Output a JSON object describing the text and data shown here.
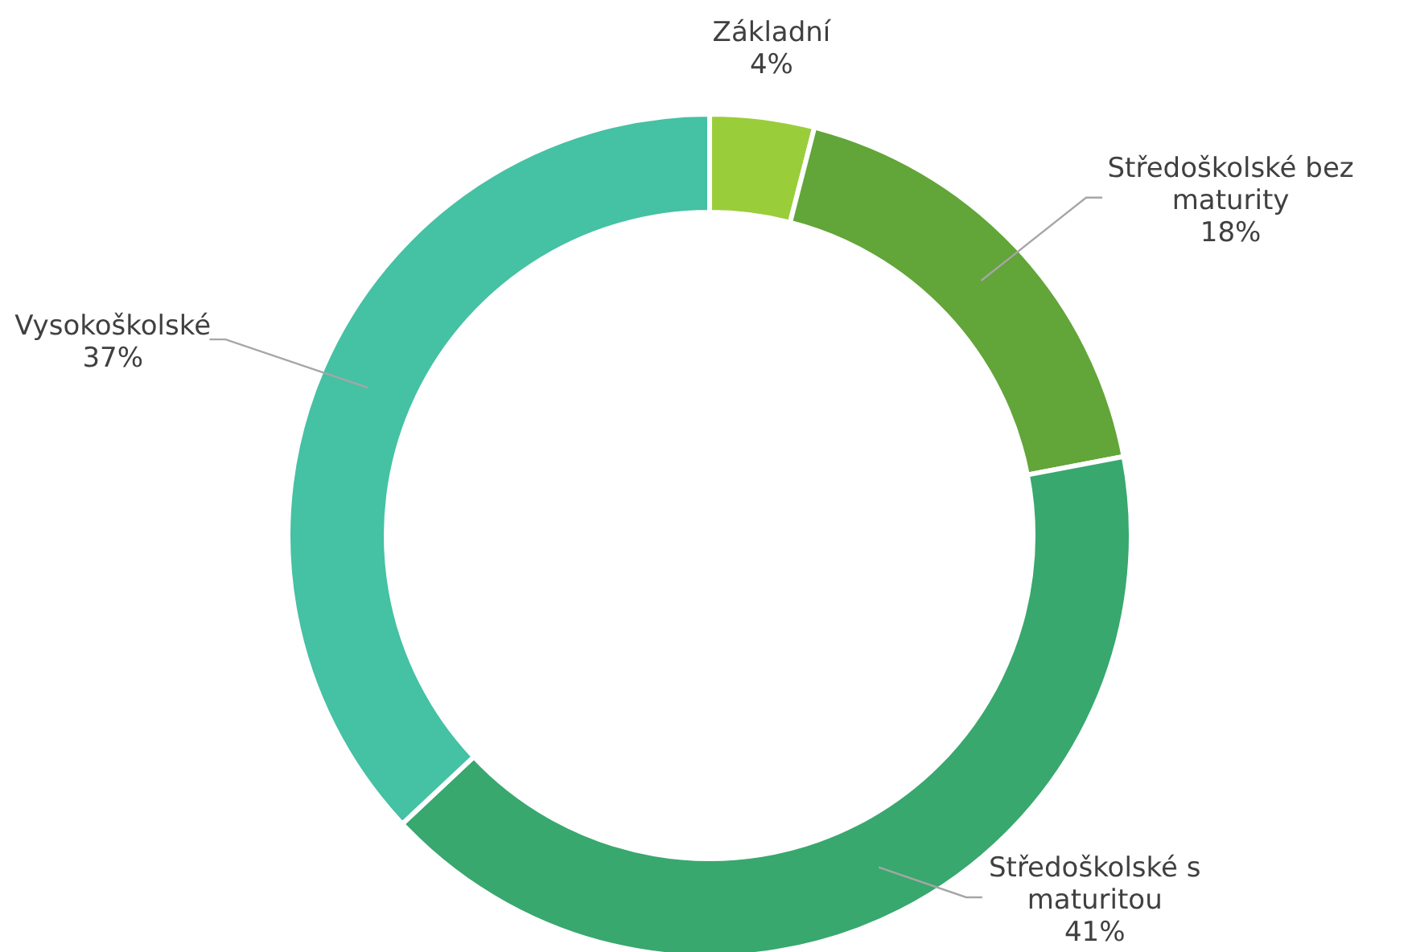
{
  "chart_data": {
    "type": "donut",
    "categories": [
      "Základní",
      "Středoškolské bez maturity",
      "Středoškolské s maturitou",
      "Vysokoškolské"
    ],
    "values": [
      4,
      18,
      41,
      37
    ],
    "value_labels": [
      "4%",
      "18%",
      "41%",
      "37%"
    ],
    "colors": [
      "#9acd3a",
      "#62a539",
      "#38a86e",
      "#45c1a4"
    ],
    "legend": false
  }
}
